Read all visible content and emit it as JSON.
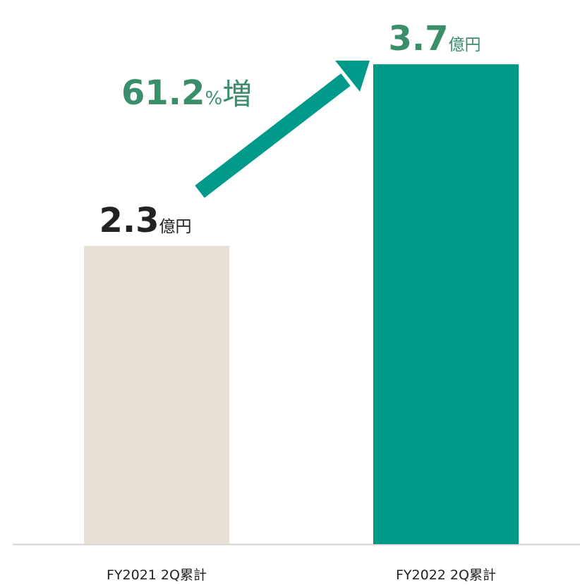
{
  "chart_data": {
    "type": "bar",
    "categories": [
      "FY2021 2Q累計",
      "FY2022 2Q累計"
    ],
    "values": [
      2.3,
      3.7
    ],
    "unit": "億円",
    "colors": [
      "#e8e0d4",
      "#009887"
    ],
    "label_colors": [
      "#222222",
      "#3a8f6a"
    ],
    "annotation": [
      "61.2",
      "%",
      "増"
    ]
  }
}
